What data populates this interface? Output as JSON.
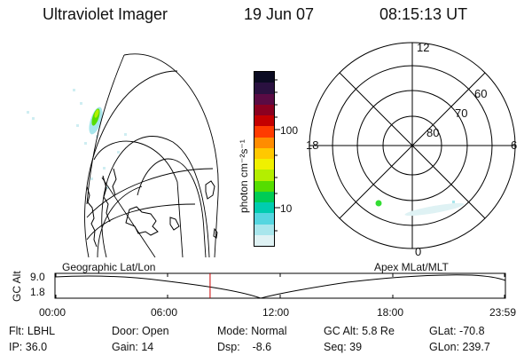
{
  "header": {
    "title": "Ultraviolet Imager",
    "date": "19 Jun 07",
    "time": "08:15:13 UT"
  },
  "colorbar": {
    "unit_label": "photon cm⁻²s⁻¹",
    "ticks": [
      "100",
      "10"
    ],
    "colors": [
      "#0b0b22",
      "#2a1140",
      "#5a0b44",
      "#8b0020",
      "#c40000",
      "#ff3b00",
      "#ff8c00",
      "#ffc800",
      "#f0f000",
      "#b4ee00",
      "#55dd00",
      "#00cc55",
      "#00ccb0",
      "#55d6e0",
      "#a8e6ec",
      "#dff2f4"
    ]
  },
  "polar_plot": {
    "labels": [
      "12",
      "18",
      "6",
      "0",
      "60",
      "70",
      "80"
    ]
  },
  "timeline": {
    "left_label": "Geographic Lat/Lon",
    "right_label": "Apex MLat/MLT",
    "axis_label": "GC Alt",
    "y_ticks": [
      "9.0",
      "1.8"
    ],
    "x_ticks": [
      "00:00",
      "06:00",
      "12:00",
      "18:00",
      "23:59"
    ],
    "marker_time": "08:15",
    "marker_color": "#cc0000"
  },
  "footer": {
    "flt": "Flt: LBHL",
    "ip": "IP: 36.0",
    "door": "Door: Open",
    "gain": "Gain: 14",
    "mode": "Mode: Normal",
    "dsp": "Dsp:    -8.6",
    "gc_alt": "GC Alt: 5.8 Re",
    "seq": "Seq: 39",
    "glat": "GLat: -70.8",
    "glon": "GLon: 239.7"
  }
}
